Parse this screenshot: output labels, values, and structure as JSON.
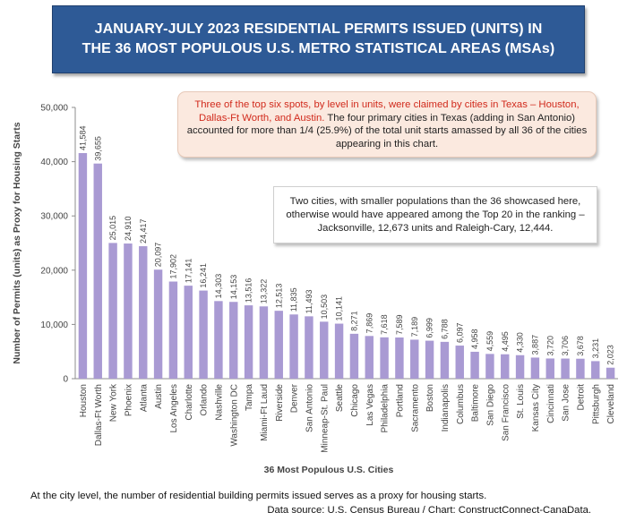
{
  "header": {
    "title_line1": "JANUARY-JULY 2023 RESIDENTIAL PERMITS ISSUED (UNITS) IN",
    "title_line2": "THE 36 MOST POPULOUS U.S. METRO STATISTICAL AREAS (MSAs)"
  },
  "annotations": {
    "note1_red": "Three of the top six spots, by level in units, were claimed by cities in Texas – Houston, Dallas-Ft Worth, and Austin.",
    "note1_rest": " The four primary cities in Texas (adding in San Antonio) accounted for more than  1/4 (25.9%) of the total unit starts amassed by all 36 of the cities appearing in this chart.",
    "note2": "Two cities, with smaller populations than the 36 showcased here, otherwise would have appeared among the Top 20 in the ranking – Jacksonville, 12,673 units and Raleigh-Cary, 12,444."
  },
  "footer": {
    "footnote": "At the city level, the number of residential building permits issued serves as a proxy for housing starts.",
    "source": "Data source: U.S. Census Bureau / Chart: ConstructConnect-CanaData."
  },
  "chart_data": {
    "type": "bar",
    "xlabel": "36 Most Populous U.S. Cities",
    "ylabel": "Number of Permits (units) as Proxy for Housing Starts",
    "ylim": [
      0,
      50000
    ],
    "yticks": [
      0,
      10000,
      20000,
      30000,
      40000,
      50000
    ],
    "ytick_labels": [
      "0",
      "10,000",
      "20,000",
      "30,000",
      "40,000",
      "50,000"
    ],
    "grid": false,
    "bar_color": "#a99ad3",
    "categories": [
      "Houston",
      "Dallas-Ft Worth",
      "New York",
      "Phoenix",
      "Atlanta",
      "Austin",
      "Los Angeles",
      "Charlotte",
      "Orlando",
      "Nashville",
      "Washington DC",
      "Tampa",
      "Miami-Ft Laud",
      "Riverside",
      "Denver",
      "San Antonio",
      "Minneap-St. Paul",
      "Seattle",
      "Chicago",
      "Las Vegas",
      "Philadelphia",
      "Portland",
      "Sacramento",
      "Boston",
      "Indianapolis",
      "Columbus",
      "Baltimore",
      "San Diego",
      "San Francisco",
      "St. Louis",
      "Kansas City",
      "Cincinnati",
      "San Jose",
      "Detroit",
      "Pittsburgh",
      "Cleveland"
    ],
    "values": [
      41584,
      39655,
      25015,
      24910,
      24417,
      20097,
      17902,
      17141,
      16241,
      14303,
      14153,
      13516,
      13322,
      12513,
      11835,
      11493,
      10503,
      10141,
      8271,
      7869,
      7618,
      7589,
      7189,
      6999,
      6788,
      6097,
      4958,
      4559,
      4495,
      4330,
      3887,
      3720,
      3706,
      3678,
      3231,
      2023
    ],
    "value_labels": [
      "41,584",
      "39,655",
      "25,015",
      "24,910",
      "24,417",
      "20,097",
      "17,902",
      "17,141",
      "16,241",
      "14,303",
      "14,153",
      "13,516",
      "13,322",
      "12,513",
      "11,835",
      "11,493",
      "10,503",
      "10,141",
      "8,271",
      "7,869",
      "7,618",
      "7,589",
      "7,189",
      "6,999",
      "6,788",
      "6,097",
      "4,958",
      "4,559",
      "4,495",
      "4,330",
      "3,887",
      "3,720",
      "3,706",
      "3,678",
      "3,231",
      "2,023"
    ]
  }
}
